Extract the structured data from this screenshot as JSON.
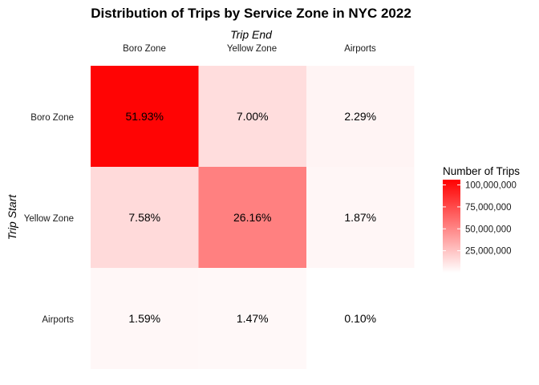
{
  "chart_data": {
    "type": "heatmap",
    "title": "Distribution of Trips by Service Zone in NYC 2022",
    "xlabel": "Trip End",
    "ylabel": "Trip Start",
    "x_categories": [
      "Boro Zone",
      "Yellow Zone",
      "Airports"
    ],
    "y_categories": [
      "Boro Zone",
      "Yellow Zone",
      "Airports"
    ],
    "cells": [
      {
        "start": "Boro Zone",
        "end": "Boro Zone",
        "label": "51.93%",
        "percent": 51.93
      },
      {
        "start": "Boro Zone",
        "end": "Yellow Zone",
        "label": "7.00%",
        "percent": 7.0
      },
      {
        "start": "Boro Zone",
        "end": "Airports",
        "label": "2.29%",
        "percent": 2.29
      },
      {
        "start": "Yellow Zone",
        "end": "Boro Zone",
        "label": "7.58%",
        "percent": 7.58
      },
      {
        "start": "Yellow Zone",
        "end": "Yellow Zone",
        "label": "26.16%",
        "percent": 26.16
      },
      {
        "start": "Yellow Zone",
        "end": "Airports",
        "label": "1.87%",
        "percent": 1.87
      },
      {
        "start": "Airports",
        "end": "Boro Zone",
        "label": "1.59%",
        "percent": 1.59
      },
      {
        "start": "Airports",
        "end": "Yellow Zone",
        "label": "1.47%",
        "percent": 1.47
      },
      {
        "start": "Airports",
        "end": "Airports",
        "label": "0.10%",
        "percent": 0.1
      }
    ],
    "legend": {
      "title": "Number of Trips",
      "range": [
        0,
        106000000
      ],
      "ticks": [
        {
          "value": 25000000,
          "label": "25,000,000"
        },
        {
          "value": 50000000,
          "label": "50,000,000"
        },
        {
          "value": 75000000,
          "label": "75,000,000"
        },
        {
          "value": 100000000,
          "label": "100,000,000"
        }
      ],
      "color_low": "#ffffff",
      "color_high": "#ff0000"
    }
  }
}
